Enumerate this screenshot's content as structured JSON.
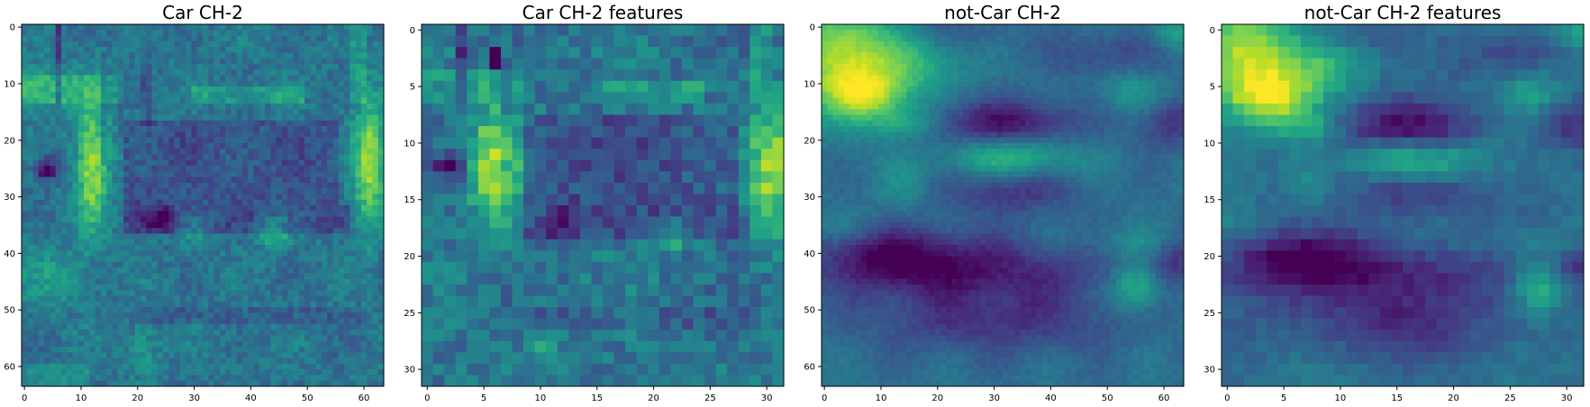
{
  "figure": {
    "background": "#ffffff",
    "colormap": "viridis"
  },
  "chart_data": [
    {
      "type": "heatmap",
      "title": "Car CH-2",
      "grid_size": 64,
      "xticks": [
        0,
        10,
        20,
        30,
        40,
        50,
        60
      ],
      "yticks": [
        0,
        10,
        20,
        30,
        40,
        50,
        60
      ],
      "xlim": [
        -0.5,
        63.5
      ],
      "ylim": [
        63.5,
        -0.5
      ],
      "grid": false,
      "base": 0.42,
      "features": [
        {
          "x": 6,
          "y": 0,
          "w": 1,
          "h": 14,
          "v": -0.22,
          "shape": "rect"
        },
        {
          "x": 14,
          "y": 5,
          "w": 1,
          "h": 20,
          "v": -0.1,
          "shape": "rect"
        },
        {
          "x": 0,
          "y": 9,
          "w": 18,
          "h": 5,
          "v": 0.1,
          "shape": "rect"
        },
        {
          "x": 30,
          "y": 11,
          "w": 20,
          "h": 3,
          "v": 0.15,
          "shape": "rect"
        },
        {
          "x": 3,
          "y": 11,
          "w": 4,
          "h": 3,
          "v": 0.22,
          "shape": "gauss"
        },
        {
          "x": 12,
          "y": 24,
          "w": 2,
          "h": 8,
          "v": 0.45,
          "shape": "gauss"
        },
        {
          "x": 4,
          "y": 25,
          "w": 1.5,
          "h": 1.5,
          "v": -0.4,
          "shape": "gauss"
        },
        {
          "x": 61,
          "y": 24,
          "w": 2,
          "h": 8,
          "v": 0.45,
          "shape": "gauss"
        },
        {
          "x": 18,
          "y": 17,
          "w": 38,
          "h": 15,
          "v": -0.12,
          "shape": "rect"
        },
        {
          "x": 18,
          "y": 32,
          "w": 40,
          "h": 5,
          "v": -0.14,
          "shape": "rect"
        },
        {
          "x": 24,
          "y": 34,
          "w": 2,
          "h": 1.5,
          "v": -0.25,
          "shape": "gauss"
        },
        {
          "x": 44,
          "y": 36,
          "w": 2,
          "h": 2,
          "v": 0.25,
          "shape": "gauss"
        },
        {
          "x": 30,
          "y": 36,
          "w": 2,
          "h": 2,
          "v": 0.12,
          "shape": "gauss"
        },
        {
          "x": 21,
          "y": 0,
          "w": 2,
          "h": 18,
          "v": -0.08,
          "shape": "rect"
        },
        {
          "x": 58,
          "y": 0,
          "w": 3,
          "h": 14,
          "v": 0.12,
          "shape": "rect"
        },
        {
          "x": 5,
          "y": 44,
          "w": 5,
          "h": 4,
          "v": 0.12,
          "shape": "gauss"
        },
        {
          "x": 20,
          "y": 50,
          "w": 40,
          "h": 3,
          "v": -0.08,
          "shape": "rect"
        },
        {
          "x": 21,
          "y": 57,
          "w": 2,
          "h": 3,
          "v": 0.15,
          "shape": "gauss"
        },
        {
          "x": 0,
          "y": 60,
          "w": 12,
          "h": 4,
          "v": 0.08,
          "shape": "rect"
        }
      ],
      "noise": 0.08,
      "seed": 11,
      "vmin": 0.05,
      "vmax": 1.0
    },
    {
      "type": "heatmap",
      "title": "Car CH-2 features",
      "grid_size": 32,
      "xticks": [
        0,
        5,
        10,
        15,
        20,
        25,
        30
      ],
      "yticks": [
        0,
        5,
        10,
        15,
        20,
        25,
        30
      ],
      "xlim": [
        -0.5,
        31.5
      ],
      "ylim": [
        31.5,
        -0.5
      ],
      "grid": false,
      "base": 0.42,
      "features": [
        {
          "x": 3,
          "y": 0,
          "w": 1,
          "h": 7,
          "v": -0.22,
          "shape": "rect"
        },
        {
          "x": 6,
          "y": 2,
          "w": 1,
          "h": 2,
          "v": -0.4,
          "shape": "rect"
        },
        {
          "x": 7,
          "y": 3,
          "w": 1,
          "h": 10,
          "v": -0.1,
          "shape": "rect"
        },
        {
          "x": 0,
          "y": 4,
          "w": 9,
          "h": 3,
          "v": 0.1,
          "shape": "rect"
        },
        {
          "x": 15,
          "y": 5,
          "w": 10,
          "h": 2,
          "v": 0.15,
          "shape": "rect"
        },
        {
          "x": 6,
          "y": 12,
          "w": 1.5,
          "h": 4,
          "v": 0.45,
          "shape": "gauss"
        },
        {
          "x": 2,
          "y": 12,
          "w": 0.8,
          "h": 0.8,
          "v": -0.4,
          "shape": "gauss"
        },
        {
          "x": 30.5,
          "y": 12,
          "w": 1.5,
          "h": 4,
          "v": 0.45,
          "shape": "gauss"
        },
        {
          "x": 9,
          "y": 8,
          "w": 19,
          "h": 8,
          "v": -0.12,
          "shape": "rect"
        },
        {
          "x": 9,
          "y": 16,
          "w": 20,
          "h": 3,
          "v": -0.14,
          "shape": "rect"
        },
        {
          "x": 12,
          "y": 17,
          "w": 1,
          "h": 1,
          "v": -0.25,
          "shape": "gauss"
        },
        {
          "x": 22,
          "y": 18,
          "w": 1,
          "h": 1,
          "v": 0.25,
          "shape": "gauss"
        },
        {
          "x": 29,
          "y": 0,
          "w": 2,
          "h": 7,
          "v": 0.12,
          "shape": "rect"
        },
        {
          "x": 10,
          "y": 25,
          "w": 20,
          "h": 2,
          "v": -0.08,
          "shape": "rect"
        },
        {
          "x": 10,
          "y": 28,
          "w": 1,
          "h": 2,
          "v": 0.15,
          "shape": "gauss"
        }
      ],
      "noise": 0.1,
      "seed": 23,
      "vmin": 0.05,
      "vmax": 1.0
    },
    {
      "type": "heatmap",
      "title": "not-Car CH-2",
      "grid_size": 64,
      "xticks": [
        0,
        10,
        20,
        30,
        40,
        50,
        60
      ],
      "yticks": [
        0,
        10,
        20,
        30,
        40,
        50,
        60
      ],
      "xlim": [
        -0.5,
        63.5
      ],
      "ylim": [
        63.5,
        -0.5
      ],
      "grid": false,
      "base": 0.4,
      "features": [
        {
          "x": 3,
          "y": 5,
          "w": 7,
          "h": 7,
          "v": 0.5,
          "shape": "gauss"
        },
        {
          "x": 8,
          "y": 12,
          "w": 5,
          "h": 3,
          "v": 0.35,
          "shape": "gauss"
        },
        {
          "x": 17,
          "y": 6,
          "w": 6,
          "h": 4,
          "v": 0.22,
          "shape": "gauss"
        },
        {
          "x": 22,
          "y": 1,
          "w": 8,
          "h": 3,
          "v": -0.1,
          "shape": "gauss"
        },
        {
          "x": 14,
          "y": 17,
          "w": 4,
          "h": 2,
          "v": 0.2,
          "shape": "gauss"
        },
        {
          "x": 32,
          "y": 17,
          "w": 9,
          "h": 3,
          "v": -0.3,
          "shape": "gauss"
        },
        {
          "x": 61,
          "y": 17,
          "w": 4,
          "h": 3,
          "v": -0.2,
          "shape": "gauss"
        },
        {
          "x": 33,
          "y": 23,
          "w": 8,
          "h": 2.5,
          "v": 0.3,
          "shape": "gauss"
        },
        {
          "x": 33,
          "y": 29,
          "w": 8,
          "h": 3,
          "v": -0.2,
          "shape": "gauss"
        },
        {
          "x": 14,
          "y": 28,
          "w": 3,
          "h": 3,
          "v": 0.12,
          "shape": "gauss"
        },
        {
          "x": 54,
          "y": 11,
          "w": 4,
          "h": 3,
          "v": 0.15,
          "shape": "gauss"
        },
        {
          "x": 50,
          "y": 5,
          "w": 7,
          "h": 3,
          "v": -0.15,
          "shape": "gauss"
        },
        {
          "x": 62,
          "y": 1,
          "w": 3,
          "h": 2,
          "v": 0.2,
          "shape": "gauss"
        },
        {
          "x": 12,
          "y": 41,
          "w": 10,
          "h": 4,
          "v": -0.32,
          "shape": "gauss"
        },
        {
          "x": 32,
          "y": 43,
          "w": 14,
          "h": 4,
          "v": -0.22,
          "shape": "gauss"
        },
        {
          "x": 30,
          "y": 52,
          "w": 16,
          "h": 4,
          "v": -0.2,
          "shape": "gauss"
        },
        {
          "x": 55,
          "y": 46,
          "w": 3,
          "h": 3,
          "v": 0.3,
          "shape": "gauss"
        },
        {
          "x": 62,
          "y": 41,
          "w": 3,
          "h": 3,
          "v": -0.2,
          "shape": "gauss"
        },
        {
          "x": 2,
          "y": 35,
          "w": 6,
          "h": 2,
          "v": 0.08,
          "shape": "gauss"
        },
        {
          "x": 55,
          "y": 38,
          "w": 8,
          "h": 2,
          "v": 0.1,
          "shape": "gauss"
        }
      ],
      "noise": 0.03,
      "seed": 37,
      "vmin": 0.05,
      "vmax": 1.0
    },
    {
      "type": "heatmap",
      "title": "not-Car CH-2 features",
      "grid_size": 32,
      "xticks": [
        0,
        5,
        10,
        15,
        20,
        25,
        30
      ],
      "yticks": [
        0,
        5,
        10,
        15,
        20,
        25,
        30
      ],
      "xlim": [
        -0.5,
        31.5
      ],
      "ylim": [
        31.5,
        -0.5
      ],
      "grid": false,
      "base": 0.4,
      "features": [
        {
          "x": 1.5,
          "y": 2.5,
          "w": 3.5,
          "h": 3.5,
          "v": 0.5,
          "shape": "gauss"
        },
        {
          "x": 4,
          "y": 6,
          "w": 2.5,
          "h": 1.5,
          "v": 0.35,
          "shape": "gauss"
        },
        {
          "x": 8.5,
          "y": 3,
          "w": 3,
          "h": 2,
          "v": 0.22,
          "shape": "gauss"
        },
        {
          "x": 11,
          "y": 0.5,
          "w": 4,
          "h": 1.5,
          "v": -0.1,
          "shape": "gauss"
        },
        {
          "x": 7,
          "y": 8.5,
          "w": 2,
          "h": 1,
          "v": 0.2,
          "shape": "gauss"
        },
        {
          "x": 16,
          "y": 8.5,
          "w": 4.5,
          "h": 1.5,
          "v": -0.3,
          "shape": "gauss"
        },
        {
          "x": 30.5,
          "y": 8.5,
          "w": 2,
          "h": 1.5,
          "v": -0.2,
          "shape": "gauss"
        },
        {
          "x": 16.5,
          "y": 11.5,
          "w": 4,
          "h": 1.2,
          "v": 0.3,
          "shape": "gauss"
        },
        {
          "x": 16.5,
          "y": 14.5,
          "w": 4,
          "h": 1.5,
          "v": -0.2,
          "shape": "gauss"
        },
        {
          "x": 7,
          "y": 14,
          "w": 1.5,
          "h": 1.5,
          "v": 0.12,
          "shape": "gauss"
        },
        {
          "x": 27,
          "y": 5.5,
          "w": 2,
          "h": 1.5,
          "v": 0.15,
          "shape": "gauss"
        },
        {
          "x": 25,
          "y": 2.5,
          "w": 3.5,
          "h": 1.5,
          "v": -0.15,
          "shape": "gauss"
        },
        {
          "x": 31,
          "y": 0.5,
          "w": 1.5,
          "h": 1,
          "v": 0.2,
          "shape": "gauss"
        },
        {
          "x": 6,
          "y": 20.5,
          "w": 5,
          "h": 2,
          "v": -0.32,
          "shape": "gauss"
        },
        {
          "x": 16,
          "y": 21.5,
          "w": 7,
          "h": 2,
          "v": -0.22,
          "shape": "gauss"
        },
        {
          "x": 15,
          "y": 26,
          "w": 8,
          "h": 2,
          "v": -0.2,
          "shape": "gauss"
        },
        {
          "x": 27.5,
          "y": 23,
          "w": 1.5,
          "h": 1.5,
          "v": 0.3,
          "shape": "gauss"
        },
        {
          "x": 31,
          "y": 20.5,
          "w": 1.5,
          "h": 1.5,
          "v": -0.2,
          "shape": "gauss"
        },
        {
          "x": 1,
          "y": 17.5,
          "w": 3,
          "h": 1,
          "v": 0.08,
          "shape": "gauss"
        },
        {
          "x": 27.5,
          "y": 19,
          "w": 4,
          "h": 1,
          "v": 0.1,
          "shape": "gauss"
        }
      ],
      "noise": 0.04,
      "seed": 51,
      "vmin": 0.05,
      "vmax": 1.0
    }
  ]
}
